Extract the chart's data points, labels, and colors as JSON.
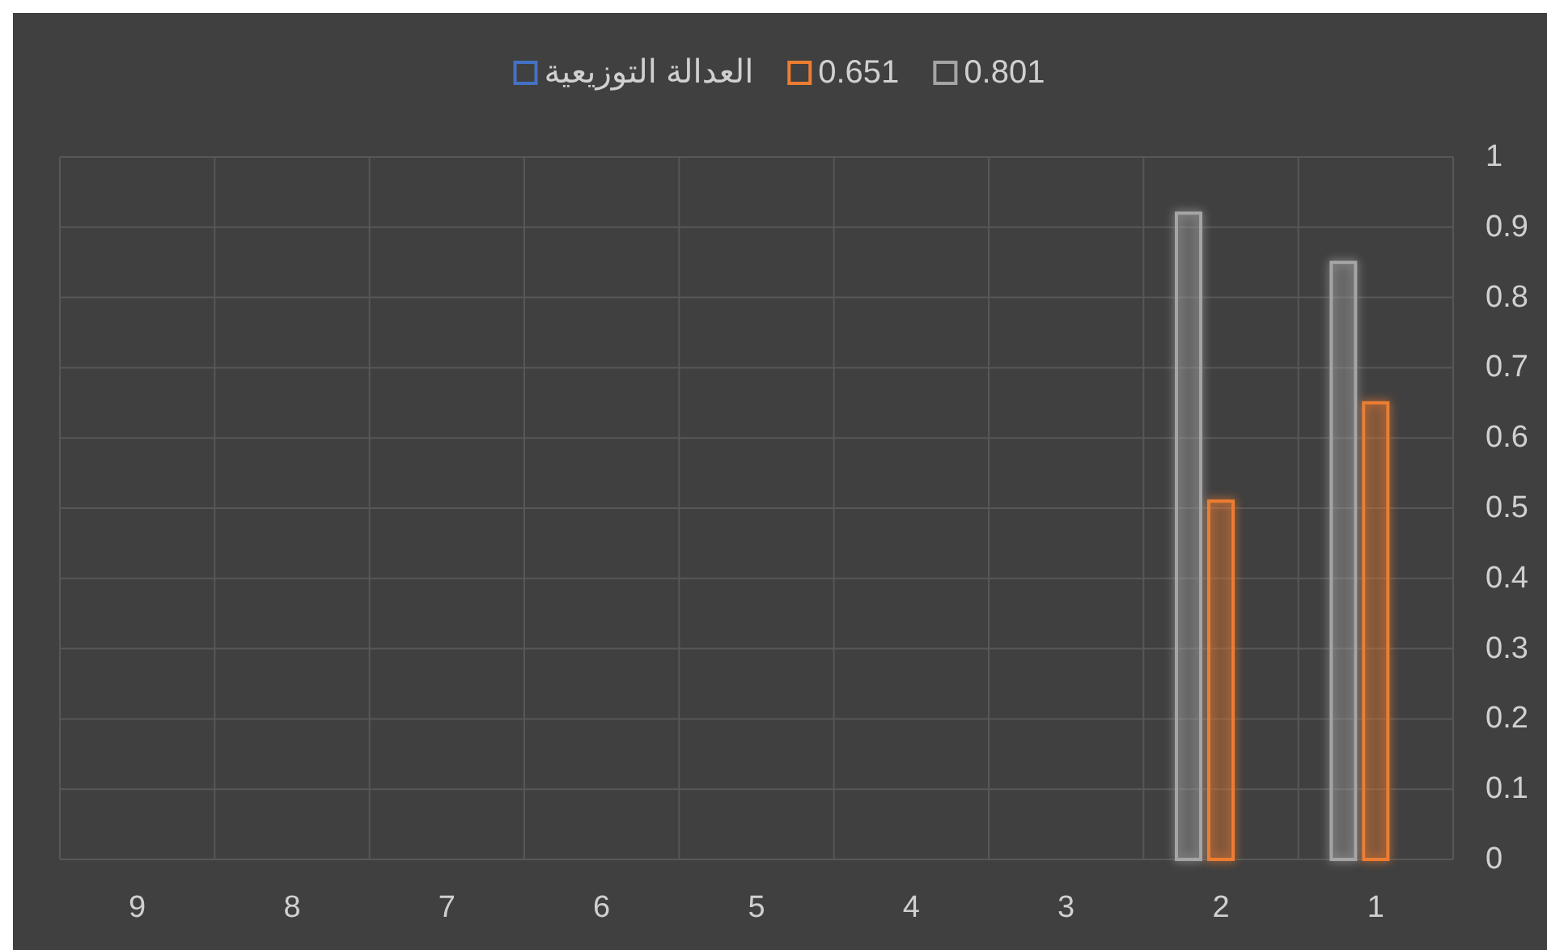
{
  "chart_data": {
    "type": "bar",
    "categories": [
      "9",
      "8",
      "7",
      "6",
      "5",
      "4",
      "3",
      "2",
      "1"
    ],
    "series": [
      {
        "name": "العدالة التوزيعية",
        "color": "#4472c4",
        "values": [
          null,
          null,
          null,
          null,
          null,
          null,
          null,
          null,
          null
        ]
      },
      {
        "name": "0.651",
        "color": "#ed7d31",
        "values": [
          null,
          null,
          null,
          null,
          null,
          null,
          null,
          0.51,
          0.65
        ]
      },
      {
        "name": "0.801",
        "color": "#a5a5a5",
        "values": [
          null,
          null,
          null,
          null,
          null,
          null,
          null,
          0.92,
          0.85
        ]
      }
    ],
    "ylim": [
      0,
      1
    ],
    "yticks": [
      0,
      0.1,
      0.2,
      0.3,
      0.4,
      0.5,
      0.6,
      0.7,
      0.8,
      0.9,
      1
    ],
    "grid": true,
    "legend": "top"
  }
}
